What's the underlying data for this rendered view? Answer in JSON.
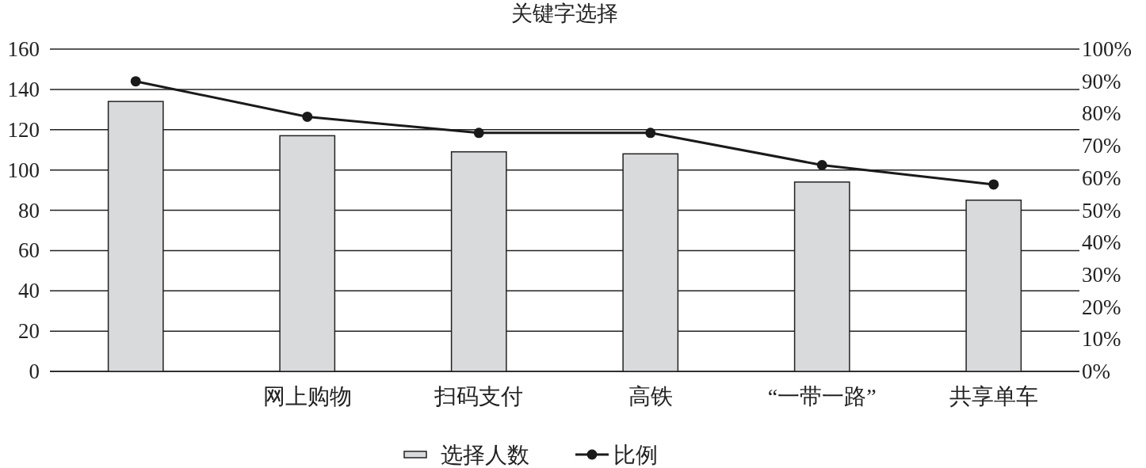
{
  "chart_data": {
    "type": "bar",
    "title": "关键字选择",
    "categories": [
      null,
      "网上购物",
      "扫码支付",
      "高铁",
      "“一带一路”",
      "共享单车"
    ],
    "series": [
      {
        "name": "选择人数",
        "color": "#d9dadc",
        "values": [
          134,
          117,
          109,
          108,
          94,
          85
        ]
      },
      {
        "name": "比例",
        "type": "line",
        "axis": "y2",
        "color": "#1a1a1a",
        "values": [
          90,
          79,
          74,
          74,
          64,
          58
        ]
      }
    ],
    "ylim": [
      0,
      160
    ],
    "yticks": [
      0,
      20,
      40,
      60,
      80,
      100,
      120,
      140,
      160
    ],
    "y2lim": [
      0,
      100
    ],
    "y2ticks": [
      {
        "value": 0,
        "label": "0%"
      },
      {
        "value": 10,
        "label": "10%"
      },
      {
        "value": 20,
        "label": "20%"
      },
      {
        "value": 30,
        "label": "30%"
      },
      {
        "value": 40,
        "label": "40%"
      },
      {
        "value": 50,
        "label": "50%"
      },
      {
        "value": 60,
        "label": "60%"
      },
      {
        "value": 70,
        "label": "70%"
      },
      {
        "value": 80,
        "label": "80%"
      },
      {
        "value": 90,
        "label": "90%"
      },
      {
        "value": 100,
        "label": "100%"
      }
    ],
    "grid": "y",
    "legend": "bottom",
    "marker": "circle"
  }
}
